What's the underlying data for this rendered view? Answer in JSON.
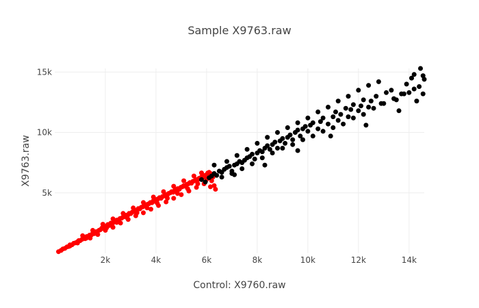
{
  "chart_data": {
    "type": "scatter",
    "title": "Sample X9763.raw",
    "xlabel": "Control: X9760.raw",
    "ylabel": "X9763.raw",
    "xlim": [
      0,
      14600
    ],
    "ylim": [
      0,
      15300
    ],
    "x_ticks": [
      {
        "value": 2000,
        "label": "2k"
      },
      {
        "value": 4000,
        "label": "4k"
      },
      {
        "value": 6000,
        "label": "6k"
      },
      {
        "value": 8000,
        "label": "8k"
      },
      {
        "value": 10000,
        "label": "10k"
      },
      {
        "value": 12000,
        "label": "12k"
      },
      {
        "value": 14000,
        "label": "14k"
      }
    ],
    "y_ticks": [
      {
        "value": 5000,
        "label": "5k"
      },
      {
        "value": 10000,
        "label": "10k"
      },
      {
        "value": 15000,
        "label": "15k"
      }
    ],
    "grid": true,
    "legend": "none",
    "series": [
      {
        "color": "#ff0000",
        "points": [
          [
            150,
            130
          ],
          [
            250,
            230
          ],
          [
            320,
            350
          ],
          [
            400,
            400
          ],
          [
            480,
            520
          ],
          [
            550,
            560
          ],
          [
            600,
            690
          ],
          [
            680,
            700
          ],
          [
            750,
            820
          ],
          [
            820,
            860
          ],
          [
            900,
            950
          ],
          [
            950,
            1050
          ],
          [
            1000,
            1040
          ],
          [
            1080,
            1150
          ],
          [
            1150,
            1260
          ],
          [
            1200,
            1200
          ],
          [
            1260,
            1380
          ],
          [
            1320,
            1400
          ],
          [
            1380,
            1500
          ],
          [
            1450,
            1520
          ],
          [
            1500,
            1650
          ],
          [
            1560,
            1620
          ],
          [
            1620,
            1780
          ],
          [
            1680,
            1800
          ],
          [
            1750,
            1900
          ],
          [
            1800,
            1950
          ],
          [
            1860,
            2080
          ],
          [
            1920,
            2050
          ],
          [
            1980,
            2200
          ],
          [
            2050,
            2250
          ],
          [
            2100,
            2380
          ],
          [
            2160,
            2300
          ],
          [
            2220,
            2500
          ],
          [
            2280,
            2450
          ],
          [
            2340,
            2600
          ],
          [
            2400,
            2650
          ],
          [
            2460,
            2750
          ],
          [
            2520,
            2700
          ],
          [
            2580,
            2880
          ],
          [
            2640,
            2900
          ],
          [
            2700,
            3000
          ],
          [
            2760,
            3050
          ],
          [
            2820,
            3150
          ],
          [
            2880,
            3120
          ],
          [
            2940,
            3300
          ],
          [
            3000,
            3280
          ],
          [
            3060,
            3400
          ],
          [
            3120,
            3450
          ],
          [
            3180,
            3550
          ],
          [
            3240,
            3500
          ],
          [
            3300,
            3700
          ],
          [
            3360,
            3680
          ],
          [
            3420,
            3800
          ],
          [
            3480,
            3850
          ],
          [
            3540,
            3950
          ],
          [
            3600,
            3920
          ],
          [
            3660,
            4050
          ],
          [
            3720,
            4100
          ],
          [
            3780,
            4200
          ],
          [
            3840,
            4180
          ],
          [
            3900,
            4350
          ],
          [
            3960,
            4300
          ],
          [
            4020,
            4450
          ],
          [
            4080,
            4500
          ],
          [
            4140,
            4600
          ],
          [
            4200,
            4550
          ],
          [
            4260,
            4700
          ],
          [
            4320,
            4750
          ],
          [
            4380,
            4850
          ],
          [
            4440,
            4800
          ],
          [
            4500,
            4950
          ],
          [
            4560,
            5000
          ],
          [
            4620,
            5100
          ],
          [
            4680,
            5050
          ],
          [
            4740,
            5200
          ],
          [
            4800,
            5250
          ],
          [
            4860,
            5350
          ],
          [
            4920,
            5300
          ],
          [
            4980,
            5450
          ],
          [
            5040,
            5500
          ],
          [
            5100,
            5600
          ],
          [
            5160,
            5550
          ],
          [
            5220,
            5700
          ],
          [
            5280,
            5750
          ],
          [
            5340,
            5850
          ],
          [
            5400,
            5800
          ],
          [
            5460,
            5950
          ],
          [
            5520,
            6000
          ],
          [
            5580,
            6100
          ],
          [
            5640,
            6050
          ],
          [
            5700,
            6200
          ],
          [
            5760,
            6250
          ],
          [
            5820,
            6350
          ],
          [
            5880,
            6300
          ],
          [
            5940,
            6450
          ],
          [
            6000,
            6500
          ],
          [
            6060,
            6550
          ],
          [
            6120,
            6400
          ],
          [
            6150,
            6600
          ],
          [
            6100,
            6700
          ],
          [
            1400,
            1250
          ],
          [
            1700,
            1550
          ],
          [
            2000,
            1900
          ],
          [
            2300,
            2150
          ],
          [
            2600,
            2500
          ],
          [
            2900,
            2800
          ],
          [
            3200,
            3100
          ],
          [
            3500,
            3350
          ],
          [
            3800,
            3650
          ],
          [
            4100,
            3950
          ],
          [
            4400,
            4250
          ],
          [
            4700,
            4550
          ],
          [
            5000,
            4850
          ],
          [
            5300,
            5150
          ],
          [
            5600,
            5450
          ],
          [
            5900,
            5750
          ],
          [
            1100,
            1450
          ],
          [
            1500,
            1900
          ],
          [
            1900,
            2400
          ],
          [
            2300,
            2850
          ],
          [
            2700,
            3300
          ],
          [
            3100,
            3750
          ],
          [
            3500,
            4200
          ],
          [
            3900,
            4650
          ],
          [
            4300,
            5100
          ],
          [
            4700,
            5550
          ],
          [
            5100,
            6000
          ],
          [
            5500,
            6400
          ],
          [
            5800,
            6650
          ],
          [
            6050,
            6650
          ],
          [
            600,
            600
          ],
          [
            900,
            850
          ],
          [
            1250,
            1250
          ],
          [
            1650,
            1700
          ],
          [
            2050,
            2100
          ],
          [
            2450,
            2550
          ],
          [
            2850,
            2950
          ],
          [
            3250,
            3350
          ],
          [
            3650,
            3750
          ],
          [
            4050,
            4150
          ],
          [
            4450,
            4550
          ],
          [
            4850,
            4950
          ],
          [
            5250,
            5350
          ],
          [
            5650,
            5750
          ],
          [
            6000,
            6100
          ],
          [
            6150,
            5500
          ],
          [
            6300,
            5600
          ],
          [
            6350,
            5300
          ],
          [
            6250,
            6300
          ],
          [
            6200,
            6000
          ]
        ]
      },
      {
        "color": "#000000",
        "points": [
          [
            5800,
            6100
          ],
          [
            5950,
            5900
          ],
          [
            6100,
            6250
          ],
          [
            6200,
            6400
          ],
          [
            6300,
            6600
          ],
          [
            6400,
            6450
          ],
          [
            6500,
            6800
          ],
          [
            6600,
            6700
          ],
          [
            6700,
            6950
          ],
          [
            6800,
            7100
          ],
          [
            6900,
            7200
          ],
          [
            7000,
            6800
          ],
          [
            7100,
            7300
          ],
          [
            7200,
            7400
          ],
          [
            7300,
            7600
          ],
          [
            7400,
            7500
          ],
          [
            7500,
            7700
          ],
          [
            7600,
            7900
          ],
          [
            7700,
            8000
          ],
          [
            7800,
            8200
          ],
          [
            7900,
            7800
          ],
          [
            8000,
            8300
          ],
          [
            8100,
            8500
          ],
          [
            8200,
            8400
          ],
          [
            8300,
            8700
          ],
          [
            8400,
            8900
          ],
          [
            8500,
            8600
          ],
          [
            8600,
            9000
          ],
          [
            8700,
            9200
          ],
          [
            8800,
            8700
          ],
          [
            8900,
            9300
          ],
          [
            9000,
            9500
          ],
          [
            9100,
            9100
          ],
          [
            9200,
            9600
          ],
          [
            9300,
            9800
          ],
          [
            9400,
            9400
          ],
          [
            9500,
            10000
          ],
          [
            9600,
            10200
          ],
          [
            9700,
            9700
          ],
          [
            9800,
            10300
          ],
          [
            9900,
            10500
          ],
          [
            10000,
            10100
          ],
          [
            10100,
            10600
          ],
          [
            10200,
            10800
          ],
          [
            10400,
            10300
          ],
          [
            10500,
            10900
          ],
          [
            10600,
            11200
          ],
          [
            10800,
            10700
          ],
          [
            11000,
            11300
          ],
          [
            11100,
            11700
          ],
          [
            11200,
            11000
          ],
          [
            11300,
            11500
          ],
          [
            11500,
            12000
          ],
          [
            11600,
            11300
          ],
          [
            11700,
            11900
          ],
          [
            11800,
            12300
          ],
          [
            12000,
            11800
          ],
          [
            12100,
            12200
          ],
          [
            12200,
            12700
          ],
          [
            12400,
            12100
          ],
          [
            12500,
            12600
          ],
          [
            12700,
            13000
          ],
          [
            12900,
            12400
          ],
          [
            13100,
            13300
          ],
          [
            13300,
            13500
          ],
          [
            13500,
            12700
          ],
          [
            13700,
            13200
          ],
          [
            13900,
            14000
          ],
          [
            14000,
            13300
          ],
          [
            14100,
            14500
          ],
          [
            14200,
            14800
          ],
          [
            14300,
            12600
          ],
          [
            14400,
            13800
          ],
          [
            14450,
            15300
          ],
          [
            14550,
            14700
          ],
          [
            6300,
            7300
          ],
          [
            6800,
            7600
          ],
          [
            7200,
            8100
          ],
          [
            7600,
            8600
          ],
          [
            8000,
            9100
          ],
          [
            8400,
            9600
          ],
          [
            8800,
            10000
          ],
          [
            9200,
            10400
          ],
          [
            9600,
            10800
          ],
          [
            10000,
            11200
          ],
          [
            10400,
            11700
          ],
          [
            10800,
            12100
          ],
          [
            11200,
            12600
          ],
          [
            11600,
            13000
          ],
          [
            12000,
            13500
          ],
          [
            12400,
            13900
          ],
          [
            12800,
            14200
          ],
          [
            6600,
            6300
          ],
          [
            7000,
            6600
          ],
          [
            7400,
            7000
          ],
          [
            7800,
            7400
          ],
          [
            8200,
            7900
          ],
          [
            8600,
            8300
          ],
          [
            9000,
            8700
          ],
          [
            9400,
            9000
          ],
          [
            9800,
            9400
          ],
          [
            10200,
            9700
          ],
          [
            10600,
            10100
          ],
          [
            11000,
            10400
          ],
          [
            11400,
            10700
          ],
          [
            11800,
            11200
          ],
          [
            12200,
            11500
          ],
          [
            12600,
            12000
          ],
          [
            13000,
            12400
          ],
          [
            13400,
            12800
          ],
          [
            13800,
            13200
          ],
          [
            14200,
            13600
          ],
          [
            14600,
            14400
          ],
          [
            14550,
            13200
          ],
          [
            13600,
            11800
          ],
          [
            12300,
            10600
          ],
          [
            10900,
            9700
          ],
          [
            9600,
            8500
          ],
          [
            8300,
            7300
          ],
          [
            7100,
            6500
          ]
        ]
      }
    ]
  }
}
